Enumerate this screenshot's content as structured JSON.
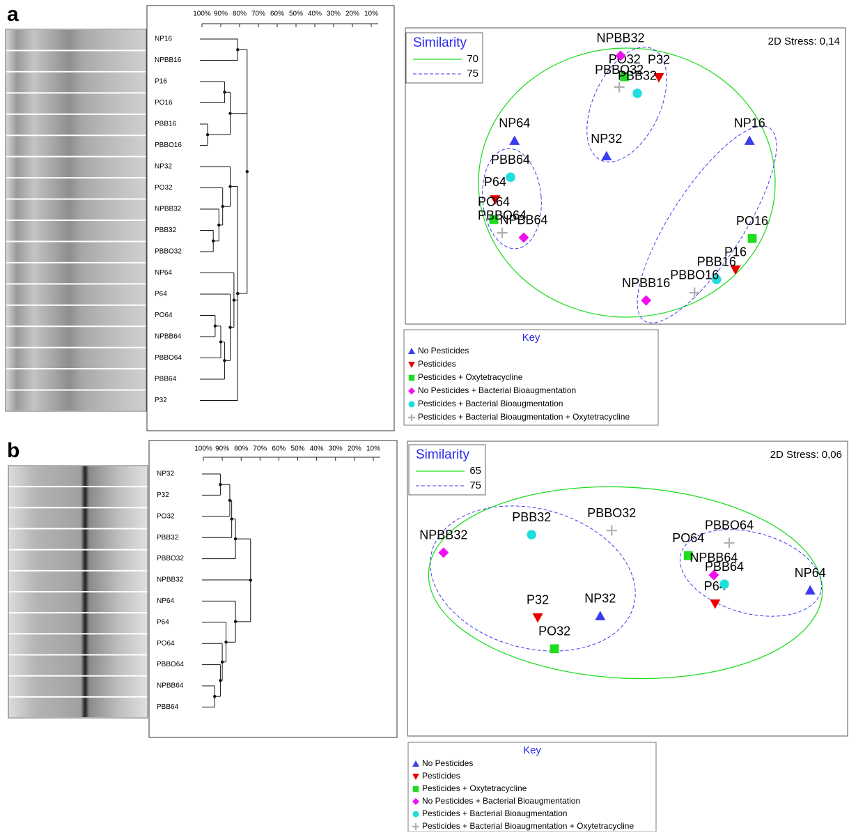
{
  "panels": [
    {
      "letter": "a",
      "dendrogram": {
        "ticks": [
          {
            "value": 100,
            "label": "100%"
          },
          {
            "value": 90,
            "label": "90%"
          },
          {
            "value": 80,
            "label": "80%"
          },
          {
            "value": 70,
            "label": "70%"
          },
          {
            "value": 60,
            "label": "60%"
          },
          {
            "value": 50,
            "label": "50%"
          },
          {
            "value": 40,
            "label": "40%"
          },
          {
            "value": 30,
            "label": "30%"
          },
          {
            "value": 20,
            "label": "20%"
          },
          {
            "value": 10,
            "label": "10%"
          }
        ],
        "tree": {
          "similarity": 76,
          "children": [
            {
              "similarity": 81,
              "children": [
                {
                  "label": "NP16"
                },
                {
                  "label": "NPBB16"
                }
              ]
            },
            {
              "similarity": 85,
              "children": [
                {
                  "similarity": 88,
                  "children": [
                    {
                      "label": "P16"
                    },
                    {
                      "label": "PO16"
                    }
                  ]
                },
                {
                  "similarity": 97,
                  "children": [
                    {
                      "label": "PBB16"
                    },
                    {
                      "label": "PBBO16"
                    }
                  ]
                }
              ]
            },
            {
              "similarity": 81,
              "children": [
                {
                  "similarity": 85,
                  "children": [
                    {
                      "label": "NP32"
                    },
                    {
                      "similarity": 89,
                      "children": [
                        {
                          "label": "PO32"
                        },
                        {
                          "similarity": 91,
                          "children": [
                            {
                              "label": "NPBB32"
                            },
                            {
                              "similarity": 94,
                              "children": [
                                {
                                  "label": "PBB32"
                                },
                                {
                                  "label": "PBBO32"
                                }
                              ]
                            }
                          ]
                        }
                      ]
                    }
                  ]
                },
                {
                  "similarity": 83,
                  "children": [
                    {
                      "label": "NP64"
                    },
                    {
                      "similarity": 85,
                      "children": [
                        {
                          "label": "P64"
                        },
                        {
                          "similarity": 88,
                          "children": [
                            {
                              "similarity": 90,
                              "children": [
                                {
                                  "similarity": 93,
                                  "children": [
                                    {
                                      "label": "PO64"
                                    },
                                    {
                                      "label": "NPBB64"
                                    }
                                  ]
                                },
                                {
                                  "label": "PBBO64"
                                }
                              ]
                            },
                            {
                              "label": "PBB64"
                            }
                          ]
                        }
                      ]
                    }
                  ]
                },
                {
                  "label": "P32"
                }
              ]
            }
          ]
        }
      }
    },
    {
      "letter": "b",
      "dendrogram": {
        "ticks": [
          {
            "value": 100,
            "label": "100%"
          },
          {
            "value": 90,
            "label": "90%"
          },
          {
            "value": 80,
            "label": "80%"
          },
          {
            "value": 70,
            "label": "70%"
          },
          {
            "value": 60,
            "label": "60%"
          },
          {
            "value": 50,
            "label": "50%"
          },
          {
            "value": 40,
            "label": "40%"
          },
          {
            "value": 30,
            "label": "30%"
          },
          {
            "value": 20,
            "label": "20%"
          },
          {
            "value": 10,
            "label": "10%"
          }
        ],
        "tree": {
          "similarity": 75,
          "children": [
            {
              "similarity": 83,
              "children": [
                {
                  "similarity": 85,
                  "children": [
                    {
                      "similarity": 86,
                      "children": [
                        {
                          "similarity": 91,
                          "children": [
                            {
                              "label": "NP32"
                            },
                            {
                              "label": "P32"
                            }
                          ]
                        },
                        {
                          "label": "PO32"
                        }
                      ]
                    },
                    {
                      "label": "PBB32"
                    }
                  ]
                },
                {
                  "label": "PBBO32"
                }
              ]
            },
            {
              "label": "NPBB32"
            },
            {
              "similarity": 83,
              "children": [
                {
                  "label": "NP64"
                },
                {
                  "similarity": 88,
                  "children": [
                    {
                      "label": "P64"
                    },
                    {
                      "similarity": 90,
                      "children": [
                        {
                          "label": "PO64"
                        },
                        {
                          "similarity": 91,
                          "children": [
                            {
                              "label": "PBBO64"
                            },
                            {
                              "similarity": 94,
                              "children": [
                                {
                                  "label": "NPBB64"
                                },
                                {
                                  "label": "PBB64"
                                }
                              ]
                            }
                          ]
                        }
                      ]
                    }
                  ]
                }
              ]
            }
          ]
        }
      }
    }
  ],
  "chart_data": [
    {
      "type": "scatter",
      "stress": "2D Stress: 0,14",
      "key_title": "Key",
      "similarity_legend": {
        "title": "Similarity",
        "levels": [
          70,
          75
        ]
      },
      "xlim": [
        0,
        100
      ],
      "ylim": [
        0,
        100
      ],
      "series": [
        {
          "name": "No Pesticides",
          "color": "#3b3bef",
          "marker": "triangle-up",
          "labels": [
            "NP16",
            "NP32",
            "NP64"
          ],
          "x": [
            78.2,
            45.7,
            24.8
          ],
          "y": [
            61.9,
            56.7,
            61.9
          ]
        },
        {
          "name": "Pesticides",
          "color": "#e80000",
          "marker": "triangle-down",
          "labels": [
            "P16",
            "P32",
            "P64"
          ],
          "x": [
            75.0,
            57.6,
            20.4
          ],
          "y": [
            18.4,
            83.3,
            42.1
          ]
        },
        {
          "name": "Pesticides + Oxytetracycline",
          "color": "#1fdc1f",
          "marker": "square",
          "labels": [
            "PO16",
            "PO32",
            "PO64"
          ],
          "x": [
            78.8,
            49.8,
            20.1
          ],
          "y": [
            28.9,
            83.5,
            35.3
          ]
        },
        {
          "name": "No Pesticides + Bacterial Bioaugmentation",
          "color": "#ee10ee",
          "marker": "diamond",
          "labels": [
            "NPBB16",
            "NPBB32",
            "NPBB64"
          ],
          "x": [
            54.7,
            48.9,
            26.9
          ],
          "y": [
            8.0,
            90.6,
            29.2
          ]
        },
        {
          "name": "Pesticides + Bacterial Bioaugmentation",
          "color": "#1fdede",
          "marker": "circle",
          "labels": [
            "PBB16",
            "PBB32",
            "PBB64"
          ],
          "x": [
            70.7,
            52.7,
            23.9
          ],
          "y": [
            15.1,
            77.9,
            49.6
          ]
        },
        {
          "name": "Pesticides + Bacterial Bioaugmentation + Oxytetracycline",
          "color": "#b0b0b0",
          "marker": "cross",
          "labels": [
            "PBBO16",
            "PBBO32",
            "PBBO64"
          ],
          "x": [
            65.7,
            48.6,
            22.0
          ],
          "y": [
            10.6,
            80.0,
            30.8
          ]
        }
      ]
    },
    {
      "type": "scatter",
      "stress": "2D Stress: 0,06",
      "key_title": "Key",
      "similarity_legend": {
        "title": "Similarity",
        "levels": [
          65,
          75
        ]
      },
      "xlim": [
        0,
        100
      ],
      "ylim": [
        0,
        100
      ],
      "series": [
        {
          "name": "No Pesticides",
          "color": "#3b3bef",
          "marker": "triangle-up",
          "labels": [
            "NP32",
            "NP64"
          ],
          "x": [
            43.8,
            91.5
          ],
          "y": [
            40.7,
            49.4
          ]
        },
        {
          "name": "Pesticides",
          "color": "#e80000",
          "marker": "triangle-down",
          "labels": [
            "P32",
            "P64"
          ],
          "x": [
            29.6,
            69.9
          ],
          "y": [
            40.2,
            44.9
          ]
        },
        {
          "name": "Pesticides + Oxytetracycline",
          "color": "#1fdc1f",
          "marker": "square",
          "labels": [
            "PO32",
            "PO64"
          ],
          "x": [
            33.4,
            63.8
          ],
          "y": [
            29.6,
            61.2
          ]
        },
        {
          "name": "No Pesticides + Bacterial Bioaugmentation",
          "color": "#ee10ee",
          "marker": "diamond",
          "labels": [
            "NPBB32",
            "NPBB64"
          ],
          "x": [
            8.2,
            69.6
          ],
          "y": [
            62.2,
            54.6
          ]
        },
        {
          "name": "Pesticides + Bacterial Bioaugmentation",
          "color": "#1fdede",
          "marker": "circle",
          "labels": [
            "PBB32",
            "PBB64"
          ],
          "x": [
            28.2,
            72.0
          ],
          "y": [
            68.3,
            51.5
          ]
        },
        {
          "name": "Pesticides + Bacterial Bioaugmentation + Oxytetracycline",
          "color": "#b0b0b0",
          "marker": "cross",
          "labels": [
            "PBBO32",
            "PBBO64"
          ],
          "x": [
            46.4,
            73.1
          ],
          "y": [
            69.7,
            65.5
          ]
        }
      ]
    }
  ]
}
